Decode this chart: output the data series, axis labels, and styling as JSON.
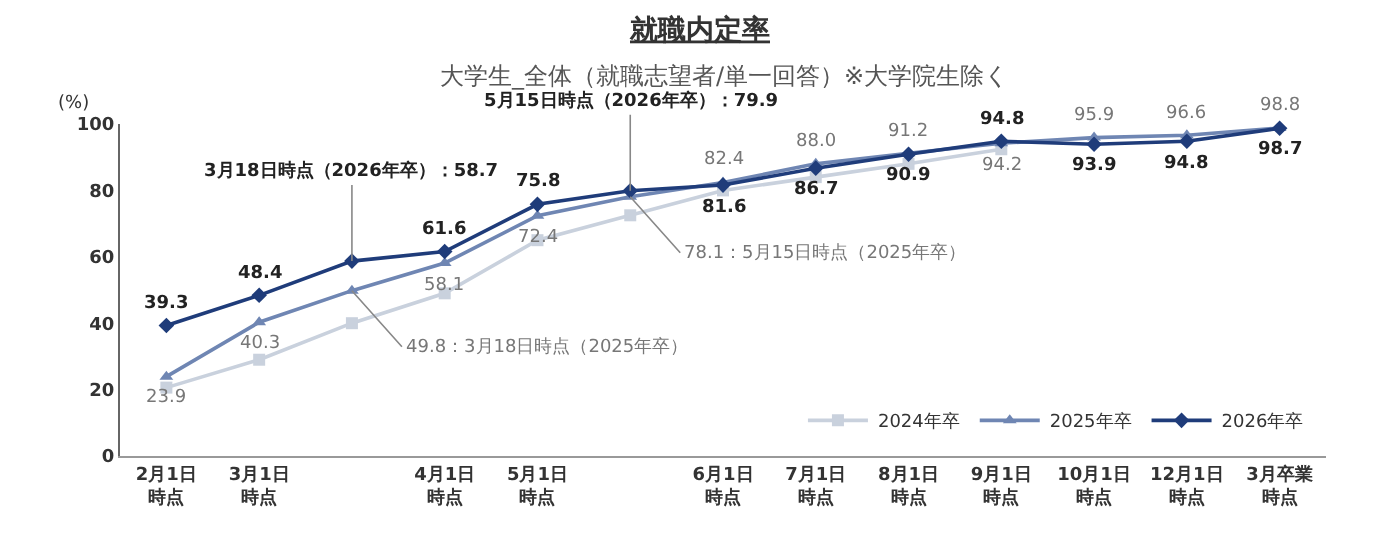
{
  "chart_data": {
    "type": "line",
    "title": "就職内定率",
    "subtitle": "大学生_全体（就職志望者/単一回答）※大学院生除く",
    "ylabel": "(%)",
    "categories": [
      "2月1日時点",
      "3月1日時点",
      null,
      "4月1日時点",
      "5月1日時点",
      null,
      "6月1日時点",
      "7月1日時点",
      "8月1日時点",
      "9月1日時点",
      "10月1日時点",
      "12月1日時点",
      "3月卒業時点"
    ],
    "ylim": [
      0,
      100
    ],
    "yticks": [
      0,
      20,
      40,
      60,
      80,
      100
    ],
    "grid": false,
    "legend": "bottom right",
    "series": [
      {
        "name": "2024年卒",
        "color": "#c9d1dd",
        "marker": "square",
        "values": [
          20.6,
          29,
          40,
          49,
          65,
          72.5,
          80,
          84,
          88,
          92.4,
          null,
          null,
          null
        ]
      },
      {
        "name": "2025年卒",
        "color": "#6f86b3",
        "marker": "triangle",
        "values": [
          23.9,
          40.3,
          49.8,
          58.1,
          72.4,
          78.1,
          82.4,
          88.0,
          91.2,
          94.2,
          95.9,
          96.6,
          98.8
        ],
        "value_labels": [
          "23.9",
          "40.3",
          "49.8：3月18日時点（2025年卒）",
          "58.1",
          "72.4",
          "78.1：5月15日時点（2025年卒）",
          "82.4",
          "88.0",
          "91.2",
          "94.2",
          "95.9",
          "96.6",
          "98.8"
        ]
      },
      {
        "name": "2026年卒",
        "color": "#1f3c7a",
        "marker": "diamond",
        "values": [
          39.3,
          48.4,
          58.7,
          61.6,
          75.8,
          79.9,
          81.6,
          86.7,
          90.9,
          94.8,
          93.9,
          94.8,
          98.7
        ],
        "value_labels": [
          "39.3",
          "48.4",
          "3月18日時点（2026年卒）：58.7",
          "61.6",
          "75.8",
          "5月15日時点（2026年卒）：79.9",
          "81.6",
          "86.7",
          "90.9",
          "94.8",
          "93.9",
          "94.8",
          "98.7"
        ]
      }
    ]
  }
}
